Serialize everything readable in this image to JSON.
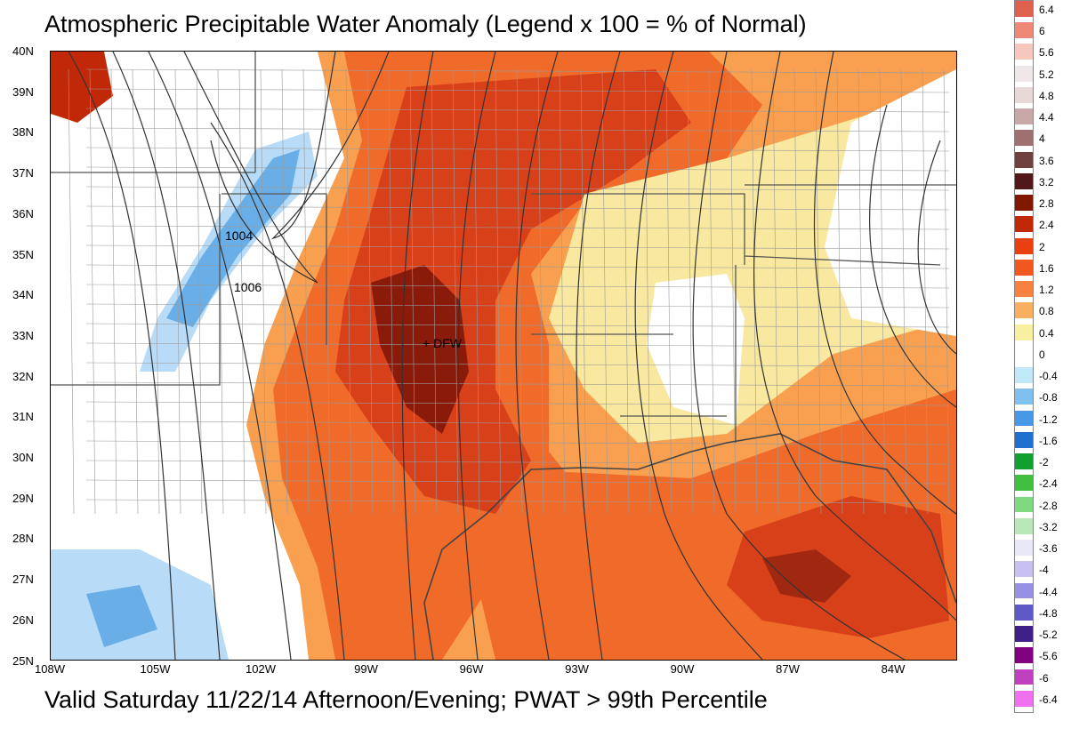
{
  "title": "Atmospheric Precipitable Water Anomaly (Legend x 100 = % of Normal)",
  "footer": "Valid Saturday 11/22/14 Afternoon/Evening; PWAT > 99th Percentile",
  "map": {
    "latitude_labels": [
      "40N",
      "39N",
      "38N",
      "37N",
      "36N",
      "35N",
      "34N",
      "33N",
      "32N",
      "31N",
      "30N",
      "29N",
      "28N",
      "27N",
      "26N",
      "25N"
    ],
    "longitude_labels": [
      "108W",
      "105W",
      "102W",
      "99W",
      "96W",
      "93W",
      "90W",
      "87W",
      "84W"
    ],
    "annotations": {
      "city": "+ DFW"
    },
    "isobar_labels": [
      "1004",
      "1006"
    ]
  },
  "legend": {
    "labels": [
      "6.4",
      "6",
      "5.6",
      "5.2",
      "4.8",
      "4.4",
      "4",
      "3.6",
      "3.2",
      "2.8",
      "2.4",
      "2",
      "1.6",
      "1.2",
      "0.8",
      "0.4",
      "0",
      "-0.4",
      "-0.8",
      "-1.2",
      "-1.6",
      "-2",
      "-2.4",
      "-2.8",
      "-3.2",
      "-3.6",
      "-4",
      "-4.4",
      "-4.8",
      "-5.2",
      "-5.6",
      "-6",
      "-6.4"
    ],
    "colors": [
      "#e06050",
      "#f08878",
      "#f8c8c0",
      "#f0e8e8",
      "#e8d8d8",
      "#c8a8a8",
      "#a07070",
      "#704040",
      "#501818",
      "#801800",
      "#c02808",
      "#e84010",
      "#f05820",
      "#f88040",
      "#f8b060",
      "#f8f0a0",
      "#ffffff",
      "#c0e8f8",
      "#80c0f0",
      "#4898e8",
      "#2070d0",
      "#10a030",
      "#40c040",
      "#80d880",
      "#b8e8b8",
      "#e8e8f8",
      "#c8c0f0",
      "#9890e0",
      "#6058c8",
      "#402088",
      "#800080",
      "#c040c0",
      "#f070f0"
    ]
  },
  "colors": {
    "background": "#ffffff",
    "anomaly_dark": "#8a1a0a",
    "anomaly_high": "#d8401a",
    "anomaly_mid": "#f06a2a",
    "anomaly_low": "#f8a050",
    "anomaly_pale": "#f8e8a0",
    "negative_light": "#b8dcf8",
    "negative_mid": "#6aaee8"
  }
}
